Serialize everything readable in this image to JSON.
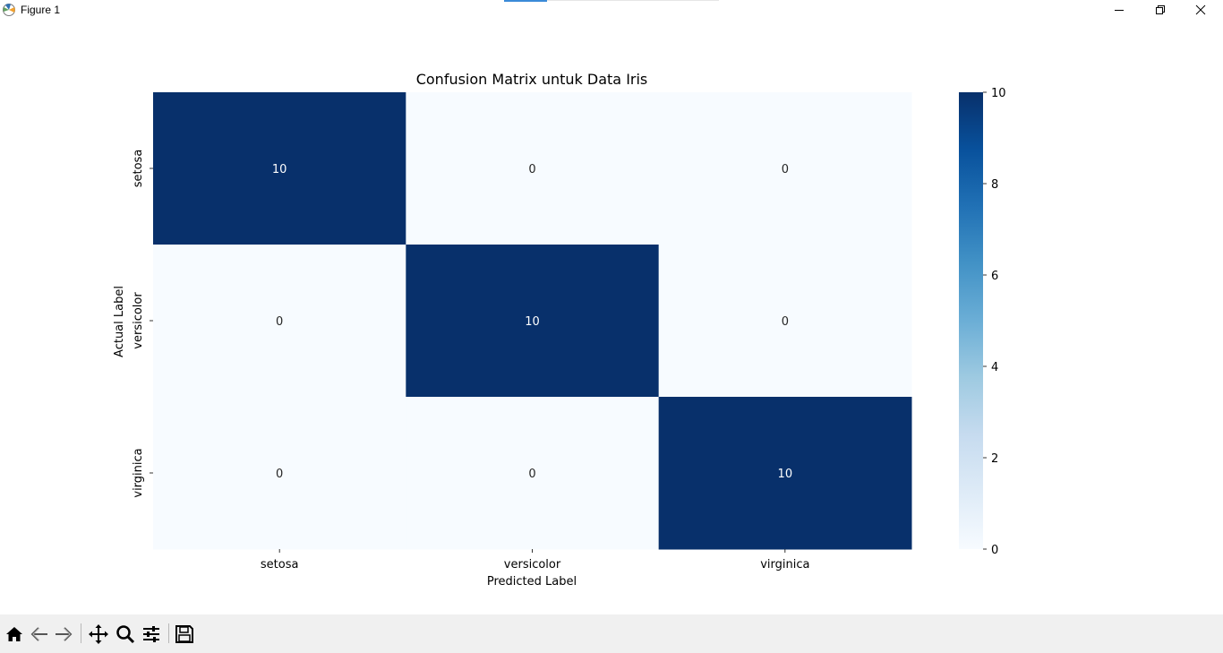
{
  "window": {
    "title": "Figure 1",
    "buttons": [
      "minimize-icon",
      "restore-icon",
      "close-icon"
    ]
  },
  "toolbar": {
    "tools": [
      "home-icon",
      "back-icon",
      "forward-icon",
      "pan-icon",
      "zoom-icon",
      "configure-subplots-icon",
      "save-icon"
    ]
  },
  "chart_data": {
    "type": "heatmap",
    "title": "Confusion Matrix untuk Data Iris",
    "xlabel": "Predicted Label",
    "ylabel": "Actual Label",
    "x_categories": [
      "setosa",
      "versicolor",
      "virginica"
    ],
    "y_categories": [
      "setosa",
      "versicolor",
      "virginica"
    ],
    "values": [
      [
        10,
        0,
        0
      ],
      [
        0,
        10,
        0
      ],
      [
        0,
        0,
        10
      ]
    ],
    "colormap": "Blues",
    "color_low": "#f7fbff",
    "color_high": "#08306b",
    "annotation_color_dark_cells": "#ffffff",
    "annotation_color_light_cells": "#262626",
    "colorbar": {
      "range": [
        0,
        10
      ],
      "ticks": [
        0,
        2,
        4,
        6,
        8,
        10
      ]
    }
  }
}
